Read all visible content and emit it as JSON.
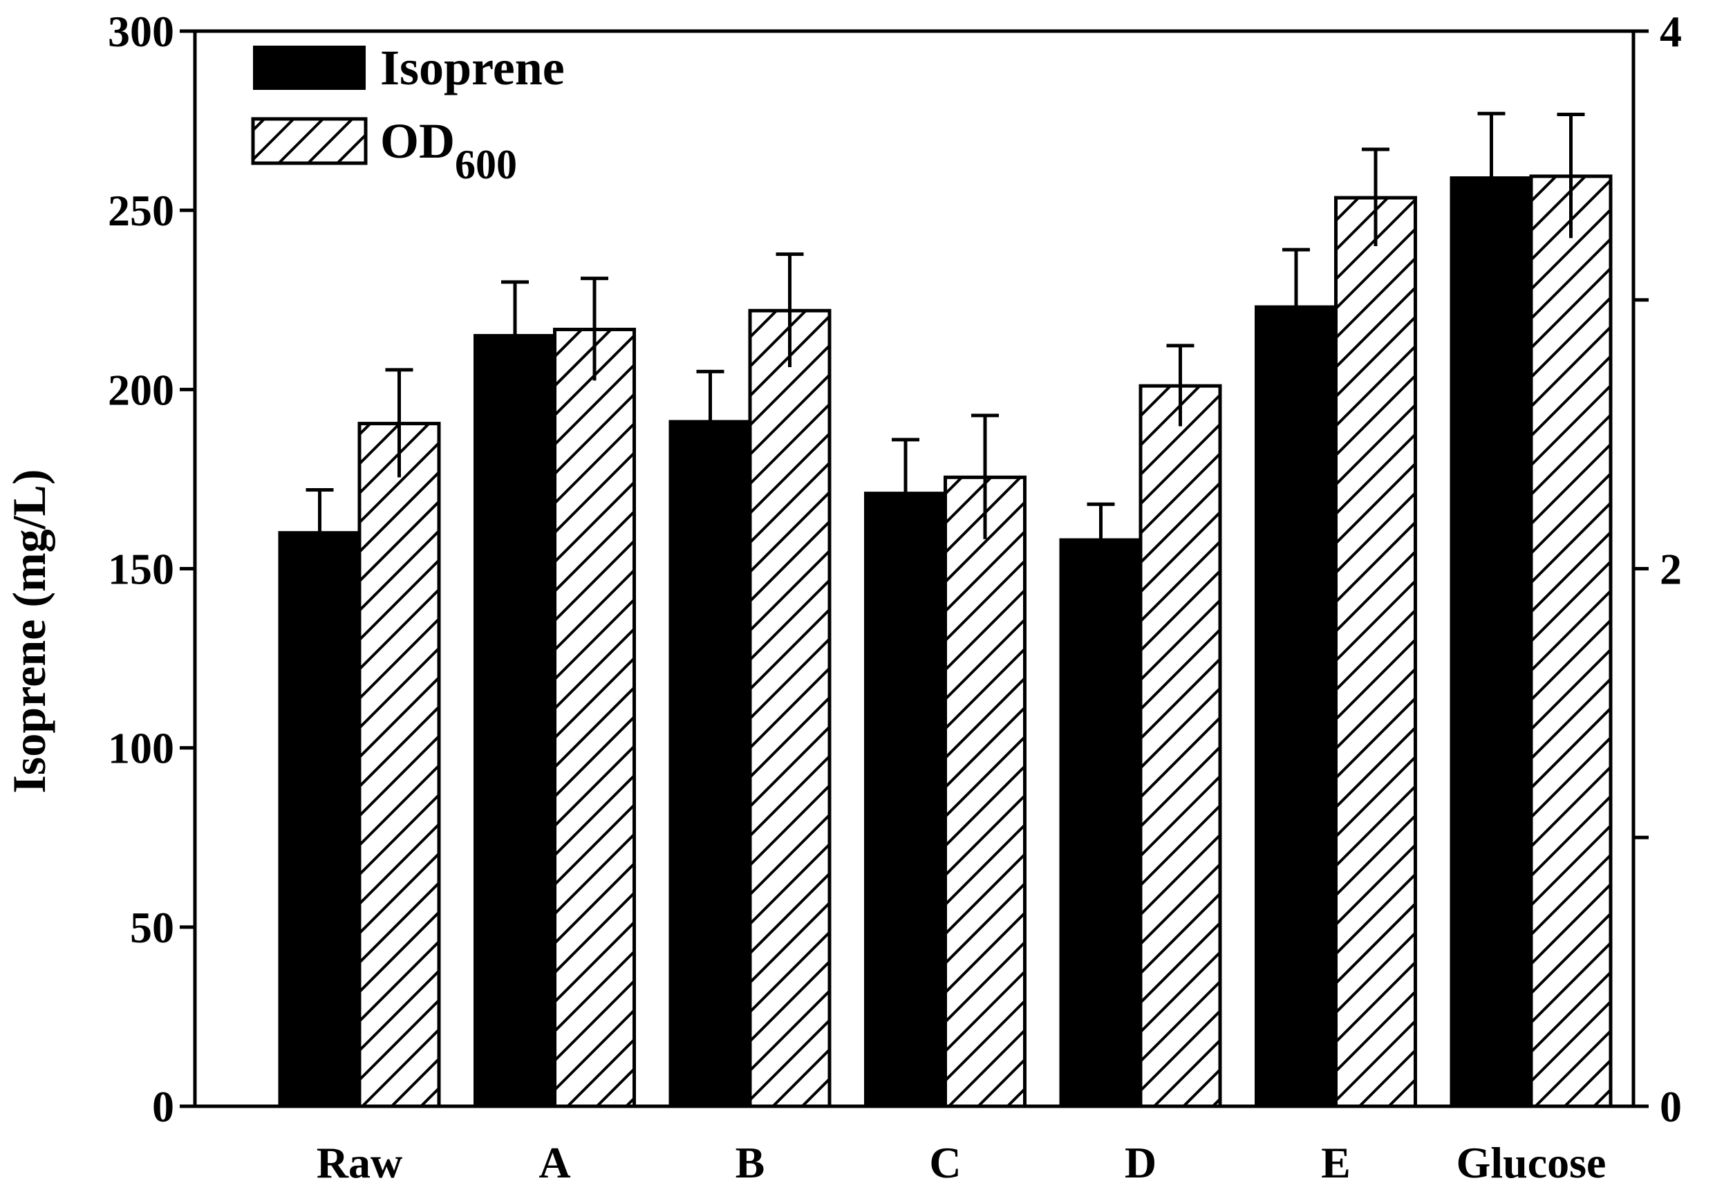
{
  "chart_data": {
    "type": "bar",
    "title": "",
    "xlabel": "",
    "ylabel": "Isoprene (mg/L)",
    "y2label": "",
    "categories": [
      "Raw",
      "A",
      "B",
      "C",
      "D",
      "E",
      "Glucose"
    ],
    "ylim": [
      0,
      300
    ],
    "y2lim": [
      0,
      4
    ],
    "yticks": [
      "0",
      "50",
      "100",
      "150",
      "200",
      "250",
      "300"
    ],
    "y2ticks": [
      "0",
      "2",
      "4"
    ],
    "legend_position": "top-left",
    "series": [
      {
        "name": "Isoprene",
        "axis": "left",
        "fill": "#000000",
        "pattern": "solid",
        "values": [
          160,
          215,
          191,
          171,
          158,
          223,
          259
        ],
        "errors": [
          12,
          15,
          14,
          15,
          10,
          16,
          18
        ]
      },
      {
        "name": "OD600",
        "name_main": "OD",
        "name_sub": "600",
        "axis": "right",
        "fill": "#ffffff",
        "pattern": "hatched",
        "values": [
          2.54,
          2.89,
          2.96,
          2.34,
          2.68,
          3.38,
          3.46
        ],
        "errors": [
          0.2,
          0.19,
          0.21,
          0.23,
          0.15,
          0.18,
          0.23
        ]
      }
    ]
  }
}
